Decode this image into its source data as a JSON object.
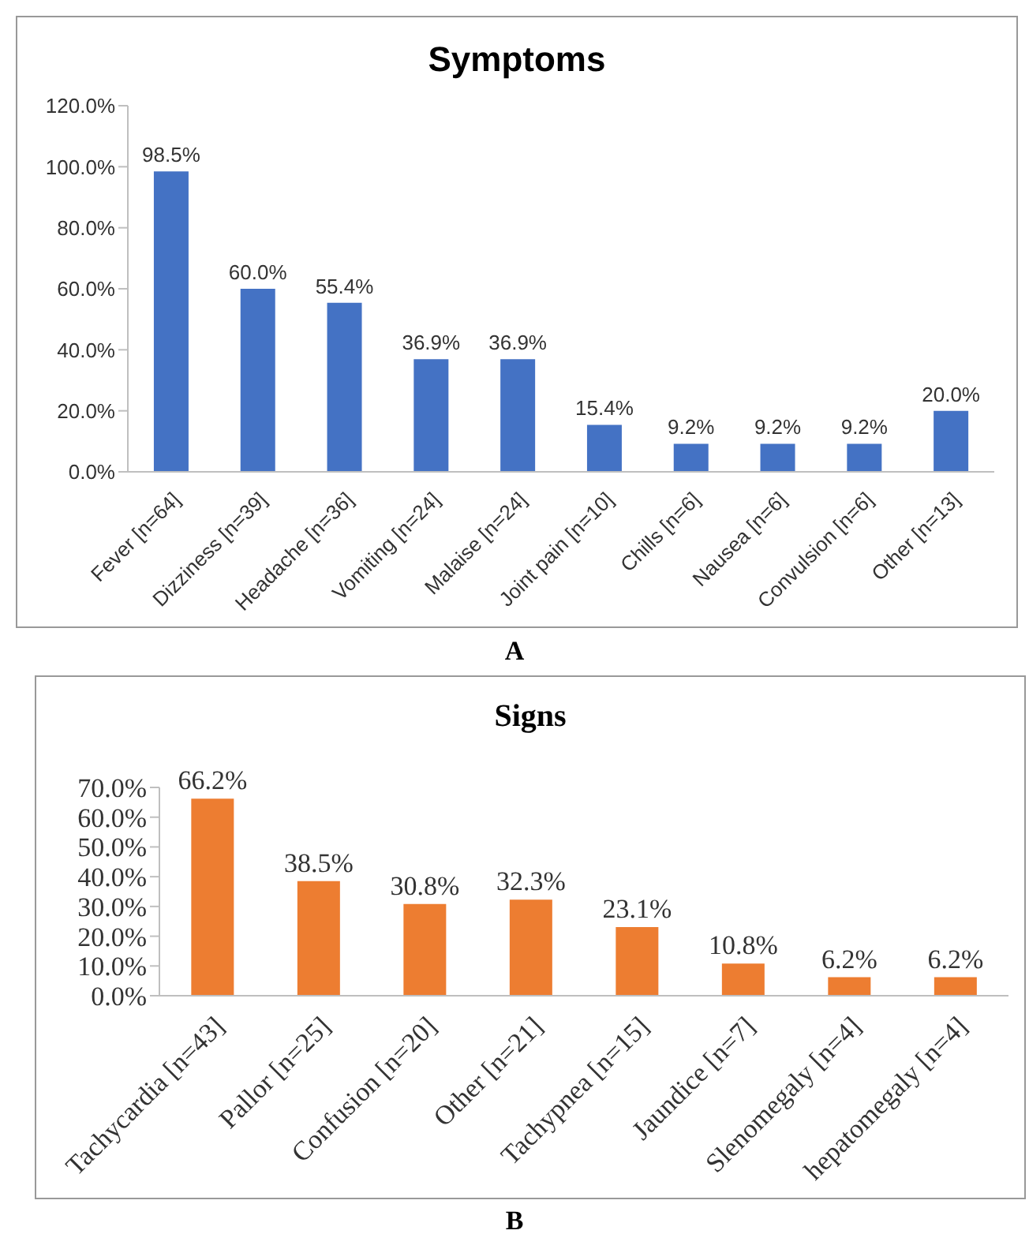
{
  "chart_data": [
    {
      "type": "bar",
      "title": "Symptoms",
      "categories": [
        "Fever [n=64]",
        "Dizziness [n=39]",
        "Headache [n=36]",
        "Vomiting [n=24]",
        "Malaise [n=24]",
        "Joint pain [n=10]",
        "Chills [n=6]",
        "Nausea [n=6]",
        "Convulsion [n=6]",
        "Other [n=13]"
      ],
      "values": [
        98.5,
        60.0,
        55.4,
        36.9,
        36.9,
        15.4,
        9.2,
        9.2,
        9.2,
        20.0
      ],
      "value_labels": [
        "98.5%",
        "60.0%",
        "55.4%",
        "36.9%",
        "36.9%",
        "15.4%",
        "9.2%",
        "9.2%",
        "9.2%",
        "20.0%"
      ],
      "color": "#4472c4",
      "ylim": [
        0,
        120
      ],
      "yticks": [
        {
          "value": 0,
          "label": "0.0%"
        },
        {
          "value": 20,
          "label": "20.0%"
        },
        {
          "value": 40,
          "label": "40.0%"
        },
        {
          "value": 60,
          "label": "60.0%"
        },
        {
          "value": 80,
          "label": "80.0%"
        },
        {
          "value": 100,
          "label": "100.0%"
        },
        {
          "value": 120,
          "label": "120.0%"
        }
      ],
      "annotations": [
        "A"
      ]
    },
    {
      "type": "bar",
      "title": "Signs",
      "categories": [
        "Tachycardia [n=43]",
        "Pallor [n=25]",
        "Confusion [n=20]",
        "Other [n=21]",
        "Tachypnea [n=15]",
        "Jaundice [n=7]",
        "Slenomegaly [n=4]",
        "hepatomegaly [n=4]"
      ],
      "values": [
        66.2,
        38.5,
        30.8,
        32.3,
        23.1,
        10.8,
        6.2,
        6.2
      ],
      "value_labels": [
        "66.2%",
        "38.5%",
        "30.8%",
        "32.3%",
        "23.1%",
        "10.8%",
        "6.2%",
        "6.2%"
      ],
      "color": "#ed7d31",
      "ylim": [
        0,
        70
      ],
      "yticks": [
        {
          "value": 0,
          "label": "0.0%"
        },
        {
          "value": 10,
          "label": "10.0%"
        },
        {
          "value": 20,
          "label": "20.0%"
        },
        {
          "value": 30,
          "label": "30.0%"
        },
        {
          "value": 40,
          "label": "40.0%"
        },
        {
          "value": 50,
          "label": "50.0%"
        },
        {
          "value": 60,
          "label": "60.0%"
        },
        {
          "value": 70,
          "label": "70.0%"
        }
      ],
      "annotations": [
        "B"
      ]
    }
  ]
}
